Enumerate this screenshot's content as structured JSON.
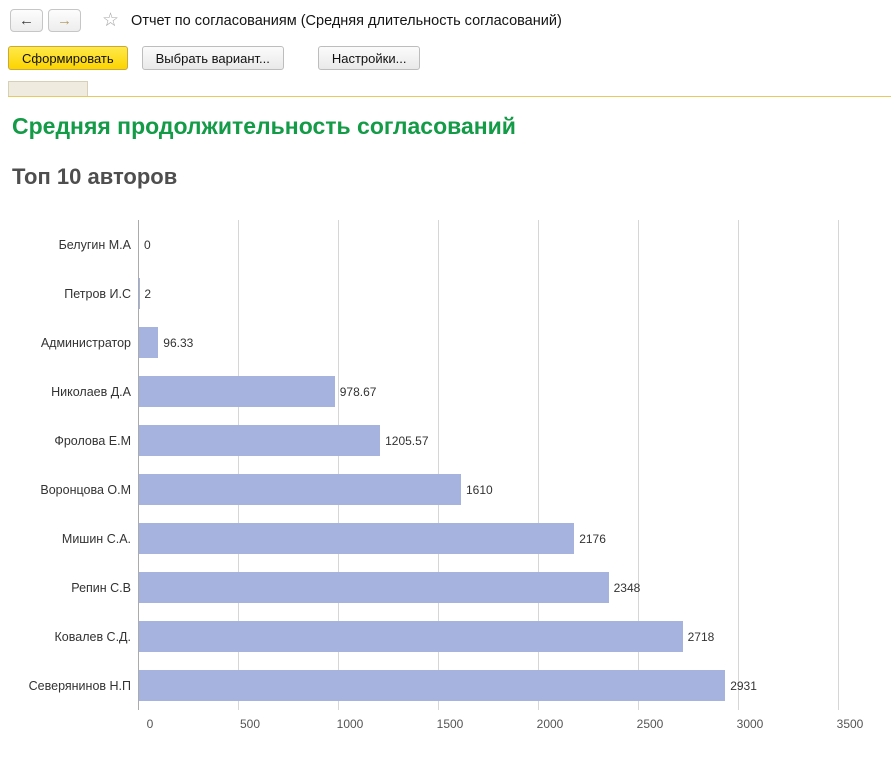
{
  "window": {
    "title": "Отчет по согласованиям (Средняя длительность согласований)"
  },
  "nav": {
    "back_icon": "←",
    "forward_icon": "→",
    "favorites_icon": "☆"
  },
  "toolbar": {
    "generate_label": "Сформировать",
    "variant_label": "Выбрать вариант...",
    "settings_label": "Настройки..."
  },
  "report": {
    "title": "Средняя продолжительность согласований",
    "subtitle": "Топ 10 авторов"
  },
  "colors": {
    "report_title_green": "#149b47",
    "subtitle_gray": "#4e4e4e",
    "generate_button_yellow": "#fcd400",
    "bar_fill": "#a5b3de"
  },
  "chart_data": {
    "type": "bar",
    "orientation": "horizontal",
    "title": "Средняя продолжительность согласований",
    "subtitle": "Топ 10 авторов",
    "categories": [
      "Белугин М.А",
      "Петров И.С",
      "Администратор",
      "Николаев Д.А",
      "Фролова Е.М",
      "Воронцова О.М",
      "Мишин С.А.",
      "Репин С.В",
      "Ковалев С.Д.",
      "Северянинов Н.П"
    ],
    "values": [
      0,
      2,
      96.33,
      978.67,
      1205.57,
      1610,
      2176,
      2348,
      2718,
      2931
    ],
    "value_labels": [
      "0",
      "2",
      "96.33",
      "978.67",
      "1205.57",
      "1610",
      "2176",
      "2348",
      "2718",
      "2931"
    ],
    "x_ticks": [
      0,
      500,
      1000,
      1500,
      2000,
      2500,
      3000,
      3500
    ],
    "xlim": [
      0,
      3500
    ],
    "grid": true,
    "legend": "none",
    "bar_color": "#a5b3de"
  }
}
